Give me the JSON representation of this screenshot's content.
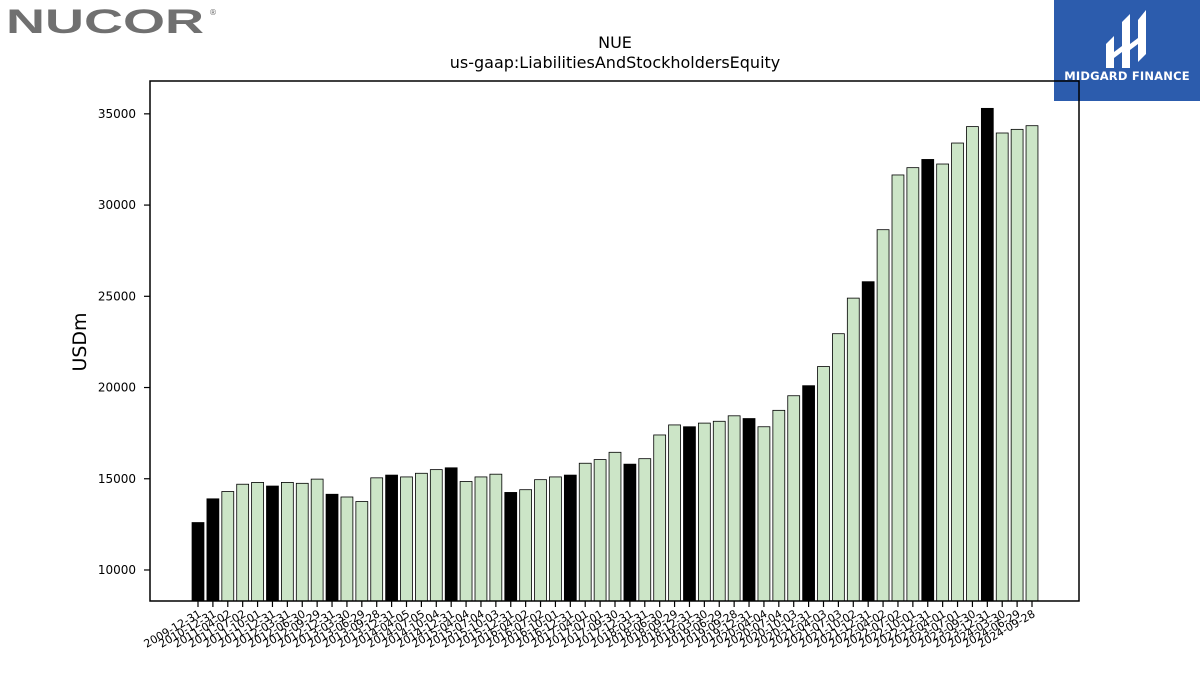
{
  "logos": {
    "left_brand": "NUCOR",
    "right_brand": "MIDGARD FINANCE"
  },
  "chart_data": {
    "type": "bar",
    "title": "NUE",
    "subtitle": "us-gaap:LiabilitiesAndStockholdersEquity",
    "xlabel": "",
    "ylabel": "USDm",
    "ylim": [
      8300,
      36800
    ],
    "yticks": [
      10000,
      15000,
      20000,
      25000,
      30000,
      35000
    ],
    "grid": false,
    "legend": "none",
    "colors": {
      "annual": "#000000",
      "quarterly": "#cce5c7",
      "edge": "#000000"
    },
    "categories": [
      "2009-12-31",
      "2010-12-31",
      "2011-04-02",
      "2011-07-02",
      "2011-10-01",
      "2011-12-31",
      "2012-03-31",
      "2012-06-30",
      "2012-09-29",
      "2012-12-31",
      "2013-03-30",
      "2013-06-29",
      "2013-09-28",
      "2013-12-31",
      "2014-04-05",
      "2014-07-05",
      "2014-10-04",
      "2014-12-31",
      "2015-04-04",
      "2015-07-04",
      "2015-10-03",
      "2015-12-31",
      "2016-04-02",
      "2016-07-02",
      "2016-10-01",
      "2016-12-31",
      "2017-04-01",
      "2017-07-01",
      "2017-09-30",
      "2017-12-31",
      "2018-03-31",
      "2018-06-30",
      "2018-09-29",
      "2018-12-31",
      "2019-03-30",
      "2019-06-29",
      "2019-09-28",
      "2019-12-31",
      "2020-04-04",
      "2020-07-04",
      "2020-10-03",
      "2020-12-31",
      "2021-04-03",
      "2021-07-03",
      "2021-10-02",
      "2021-12-31",
      "2022-04-02",
      "2022-07-02",
      "2022-10-01",
      "2022-12-31",
      "2023-04-01",
      "2023-07-01",
      "2023-09-30",
      "2023-12-31",
      "2024-03-30",
      "2024-06-29",
      "2024-09-28"
    ],
    "values": [
      12600,
      13900,
      14300,
      14700,
      14800,
      14600,
      14800,
      14750,
      14980,
      14150,
      14000,
      13750,
      15050,
      15200,
      15100,
      15300,
      15500,
      15600,
      14850,
      15100,
      15250,
      14250,
      14400,
      14950,
      15100,
      15200,
      15850,
      16050,
      16450,
      15800,
      16100,
      17400,
      17950,
      17850,
      18050,
      18150,
      18450,
      18300,
      17850,
      18750,
      19550,
      20100,
      21150,
      22950,
      24900,
      25800,
      28650,
      31650,
      32050,
      32500,
      32250,
      33400,
      34300,
      35300,
      33950,
      34150,
      34350
    ],
    "annual_flags": [
      true,
      true,
      false,
      false,
      false,
      true,
      false,
      false,
      false,
      true,
      false,
      false,
      false,
      true,
      false,
      false,
      false,
      true,
      false,
      false,
      false,
      true,
      false,
      false,
      false,
      true,
      false,
      false,
      false,
      true,
      false,
      false,
      false,
      true,
      false,
      false,
      false,
      true,
      false,
      false,
      false,
      true,
      false,
      false,
      false,
      true,
      false,
      false,
      false,
      true,
      false,
      false,
      false,
      true,
      false,
      false,
      false
    ]
  }
}
